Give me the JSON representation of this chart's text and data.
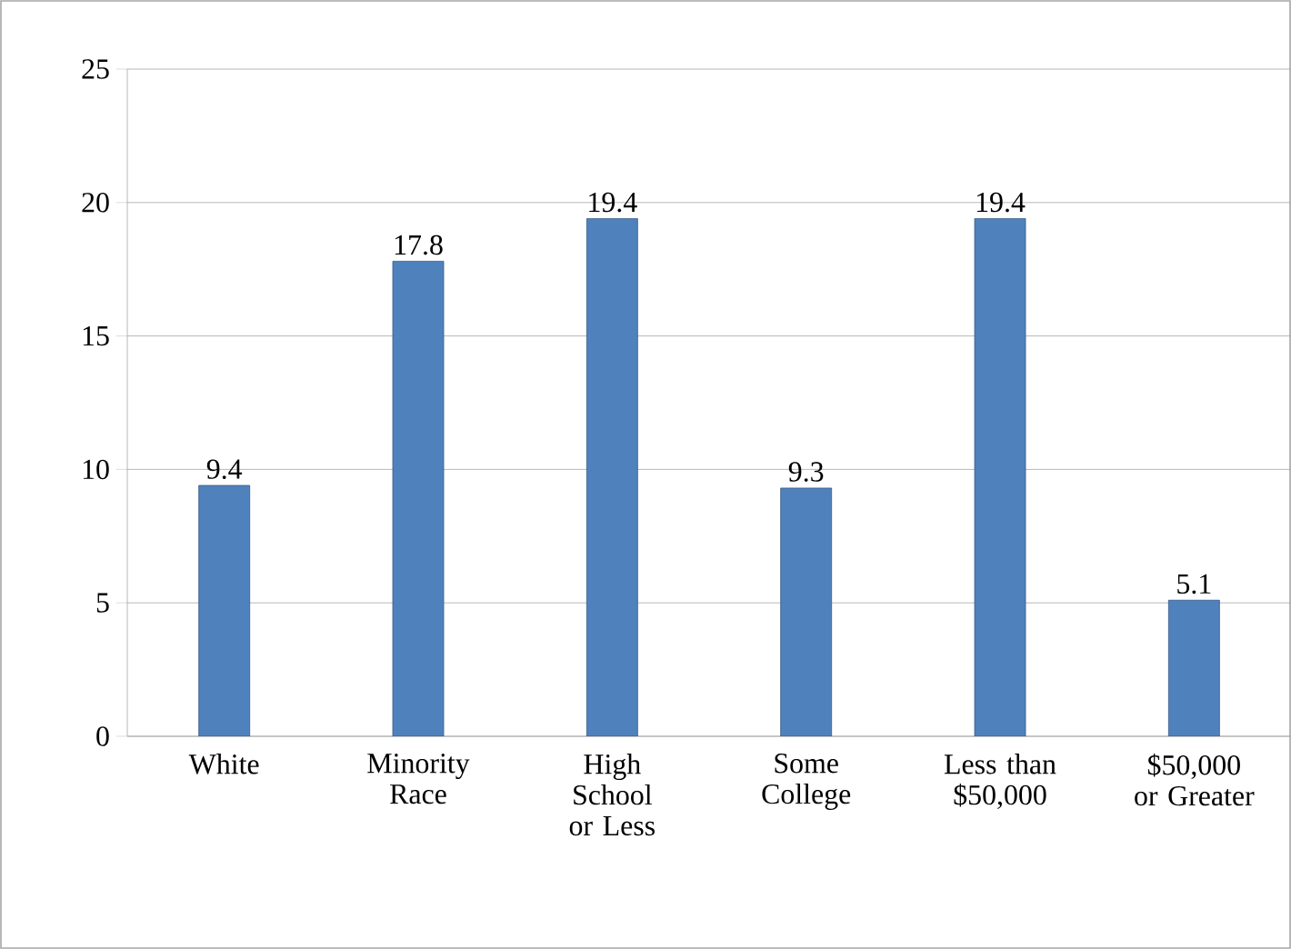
{
  "chart_data": {
    "type": "bar",
    "categories": [
      "White",
      "Minority Race",
      "High School or Less",
      "Some College",
      "Less than $50,000",
      "$50,000 or Greater"
    ],
    "values": [
      9.4,
      17.8,
      19.4,
      9.3,
      19.4,
      5.1
    ],
    "color": "#4f81bd",
    "ylim": [
      0,
      25
    ],
    "yticks": [
      0,
      5,
      10,
      15,
      20,
      25
    ],
    "grid": "y",
    "data_labels": true
  }
}
